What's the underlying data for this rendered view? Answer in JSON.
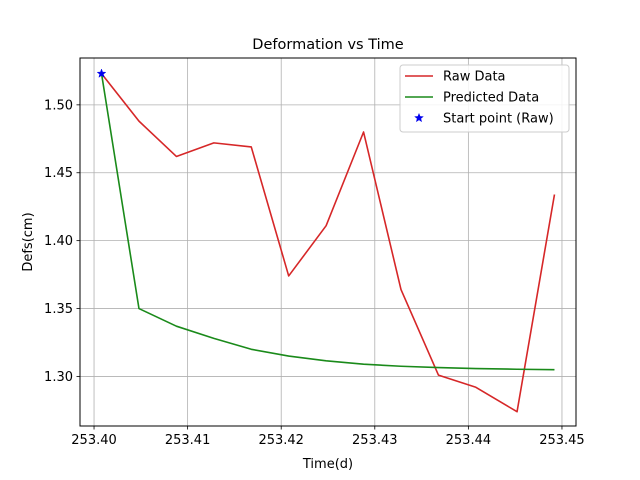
{
  "chart_data": {
    "type": "line",
    "title": "Deformation vs Time",
    "xlabel": "Time(d)",
    "ylabel": "Defs(cm)",
    "xlim": [
      253.3985,
      253.4515
    ],
    "ylim": [
      1.2635,
      1.5345
    ],
    "grid": true,
    "legend_position": "top-right",
    "x_ticks": [
      "253.40",
      "253.41",
      "253.42",
      "253.43",
      "253.44",
      "253.45"
    ],
    "y_ticks": [
      "1.30",
      "1.35",
      "1.40",
      "1.45",
      "1.50"
    ],
    "series": [
      {
        "name": "Raw Data",
        "color": "#d62728",
        "mark": "line",
        "x": [
          253.4008,
          253.4048,
          253.4088,
          253.4128,
          253.4168,
          253.4208,
          253.4248,
          253.4288,
          253.4328,
          253.4368,
          253.4408,
          253.4452,
          253.4492
        ],
        "y": [
          1.523,
          1.488,
          1.462,
          1.472,
          1.469,
          1.374,
          1.411,
          1.48,
          1.364,
          1.301,
          1.292,
          1.274,
          1.434
        ]
      },
      {
        "name": "Predicted Data",
        "color": "#1a8a1a",
        "mark": "line",
        "x": [
          253.4008,
          253.4048,
          253.4088,
          253.4128,
          253.4168,
          253.4208,
          253.4248,
          253.4288,
          253.4328,
          253.4368,
          253.4408,
          253.4452,
          253.4492
        ],
        "y": [
          1.523,
          1.35,
          1.337,
          1.328,
          1.32,
          1.315,
          1.3115,
          1.309,
          1.3075,
          1.3065,
          1.3058,
          1.3053,
          1.305
        ]
      },
      {
        "name": "Start point (Raw)",
        "color": "#0000ee",
        "mark": "star",
        "x": [
          253.4008
        ],
        "y": [
          1.523
        ]
      }
    ]
  }
}
